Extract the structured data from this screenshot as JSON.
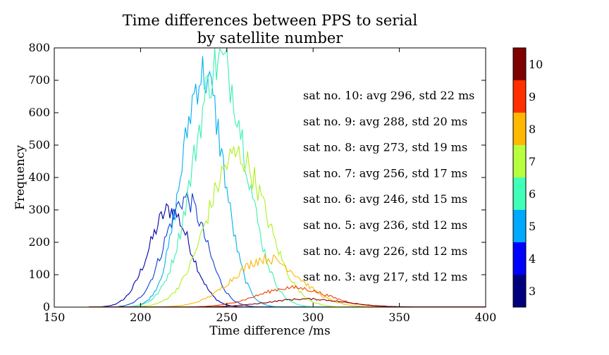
{
  "chart_data": {
    "type": "line",
    "title": "Time differences between PPS to serial",
    "subtitle": "by satellite number",
    "xlabel": "Time difference /ms",
    "ylabel": "Frequency",
    "xlim": [
      150,
      400
    ],
    "ylim": [
      0,
      800
    ],
    "xticks": [
      150,
      200,
      250,
      300,
      350,
      400
    ],
    "yticks": [
      0,
      100,
      200,
      300,
      400,
      500,
      600,
      700,
      800
    ],
    "grid": false,
    "series": [
      {
        "name": "3",
        "color": "#0000a8",
        "mean": 217,
        "std": 12,
        "peak": 300
      },
      {
        "name": "4",
        "color": "#0b3fd6",
        "mean": 226,
        "std": 12,
        "peak": 335
      },
      {
        "name": "5",
        "color": "#00b0f0",
        "mean": 236,
        "std": 12,
        "peak": 720
      },
      {
        "name": "6",
        "color": "#3cf0b0",
        "mean": 246,
        "std": 15,
        "peak": 760
      },
      {
        "name": "7",
        "color": "#b0f020",
        "mean": 256,
        "std": 17,
        "peak": 470
      },
      {
        "name": "8",
        "color": "#f8b800",
        "mean": 273,
        "std": 19,
        "peak": 150
      },
      {
        "name": "9",
        "color": "#f04000",
        "mean": 288,
        "std": 20,
        "peak": 60
      },
      {
        "name": "10",
        "color": "#800000",
        "mean": 296,
        "std": 22,
        "peak": 25
      }
    ],
    "annotations": [
      "sat no.  10:  avg 296,  std 22 ms",
      "sat no.  9:  avg 288,  std 20 ms",
      "sat no.  8:  avg 273,  std 19 ms",
      "sat no.  7:  avg 256,  std 17 ms",
      "sat no.  6:  avg 246,  std 15 ms",
      "sat no.  5:  avg 236,  std 12 ms",
      "sat no.  4:  avg 226,  std 12 ms",
      "sat no.  3:  avg 217,  std 12 ms"
    ],
    "colorbar": {
      "labels": [
        "3",
        "4",
        "5",
        "6",
        "7",
        "8",
        "9",
        "10"
      ],
      "colors": [
        "#00007f",
        "#0000ff",
        "#00a8ff",
        "#40ffb8",
        "#b8ff40",
        "#ffb800",
        "#ff3000",
        "#7f0000"
      ]
    }
  }
}
